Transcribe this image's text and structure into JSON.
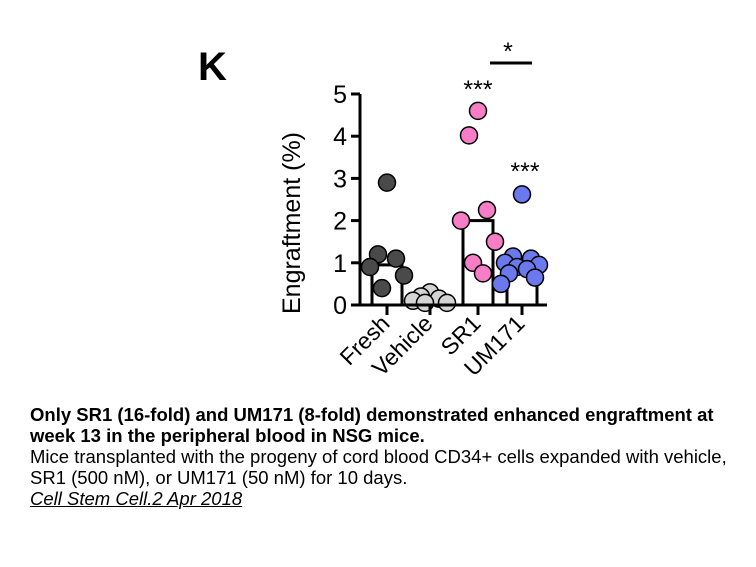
{
  "chart_data": {
    "type": "bar",
    "panel_label": "K",
    "ylabel": "Engraftment (%)",
    "ylim": [
      0,
      5
    ],
    "yticks": [
      0,
      1,
      2,
      3,
      4,
      5
    ],
    "categories": [
      "Fresh",
      "Vehicle",
      "SR1",
      "UM171"
    ],
    "bar_values": [
      0.95,
      0.1,
      2.0,
      0.98
    ],
    "colors": {
      "Fresh": "#4a4a4a",
      "Vehicle": "#d4d4d4",
      "SR1": "#f77dc6",
      "UM171": "#6b79ee"
    },
    "points": {
      "Fresh": [
        2.9,
        1.2,
        1.1,
        0.9,
        0.7,
        0.4
      ],
      "Vehicle": [
        0.3,
        0.2,
        0.15,
        0.1,
        0.05,
        0.05
      ],
      "SR1": [
        4.6,
        4.02,
        2.25,
        2.0,
        1.5,
        1.0,
        0.75
      ],
      "UM171": [
        2.62,
        1.15,
        1.1,
        1.0,
        0.95,
        0.9,
        0.85,
        0.75,
        0.65,
        0.5
      ]
    },
    "annotations": {
      "SR1": "***",
      "UM171": "***",
      "bracket": "*"
    }
  },
  "caption": {
    "bold_text": "Only SR1 (16-fold) and UM171 (8-fold) demonstrated enhanced engraftment at week 13 in the peripheral blood in NSG mice.",
    "body_text": "Mice transplanted with the progeny of cord blood CD34+ cells expanded with vehicle, SR1 (500 nM), or UM171 (50 nM) for 10 days.",
    "citation": "Cell Stem Cell.2 Apr 2018"
  }
}
